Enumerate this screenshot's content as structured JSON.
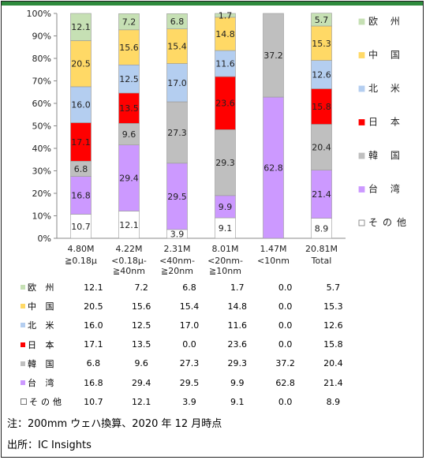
{
  "chart_data": {
    "type": "bar",
    "stacked": true,
    "normalized": true,
    "y_ticks": [
      "0%",
      "10%",
      "20%",
      "30%",
      "40%",
      "50%",
      "60%",
      "70%",
      "80%",
      "90%",
      "100%"
    ],
    "ylim": [
      0,
      100
    ],
    "categories": [
      {
        "total": "4.80M",
        "node": [
          "≧0.18μ"
        ]
      },
      {
        "total": "4.22M",
        "node": [
          "<0.18μ-",
          "≧40nm"
        ]
      },
      {
        "total": "2.31M",
        "node": [
          "<40nm-",
          "≧20nm"
        ]
      },
      {
        "total": "8.01M",
        "node": [
          "<20nm-",
          "≧10nm"
        ]
      },
      {
        "total": "1.47M",
        "node": [
          "<10nm"
        ]
      },
      {
        "total": "20.81M",
        "node": [
          "Total"
        ]
      }
    ],
    "series": [
      {
        "name": "その他",
        "legend": "□その他",
        "table_label": "□その他",
        "color": "#ffffff",
        "values": [
          10.7,
          12.1,
          3.9,
          9.1,
          0.0,
          8.9
        ]
      },
      {
        "name": "台湾",
        "legend": "台 湾",
        "table_label": "台 湾",
        "color": "#cc99ff",
        "values": [
          16.8,
          29.4,
          29.5,
          9.9,
          62.8,
          21.4
        ]
      },
      {
        "name": "韓国",
        "legend": "韓 国",
        "table_label": "韓 国",
        "color": "#bfbfbf",
        "values": [
          6.8,
          9.6,
          27.3,
          29.3,
          37.2,
          20.4
        ]
      },
      {
        "name": "日本",
        "legend": "日 本",
        "table_label": "日 本",
        "color": "#ff0000",
        "values": [
          17.1,
          13.5,
          0.0,
          23.6,
          0.0,
          15.8
        ]
      },
      {
        "name": "北米",
        "legend": "北 米",
        "table_label": "北 米",
        "color": "#b4cef0",
        "values": [
          16.0,
          12.5,
          17.0,
          11.6,
          0.0,
          12.6
        ]
      },
      {
        "name": "中国",
        "legend": "中 国",
        "table_label": "中 国",
        "color": "#ffd966",
        "values": [
          20.5,
          15.6,
          15.4,
          14.8,
          0.0,
          15.3
        ]
      },
      {
        "name": "欧州",
        "legend": "欧 州",
        "table_label": "欧 州",
        "color": "#c6e0b4",
        "values": [
          12.1,
          7.2,
          6.8,
          1.7,
          0.0,
          5.7
        ]
      }
    ],
    "legend_position": "right"
  },
  "notes": {
    "note": "注：200mm ウェハ換算、2020 年 12 月時点",
    "source": "出所：IC Insights"
  }
}
